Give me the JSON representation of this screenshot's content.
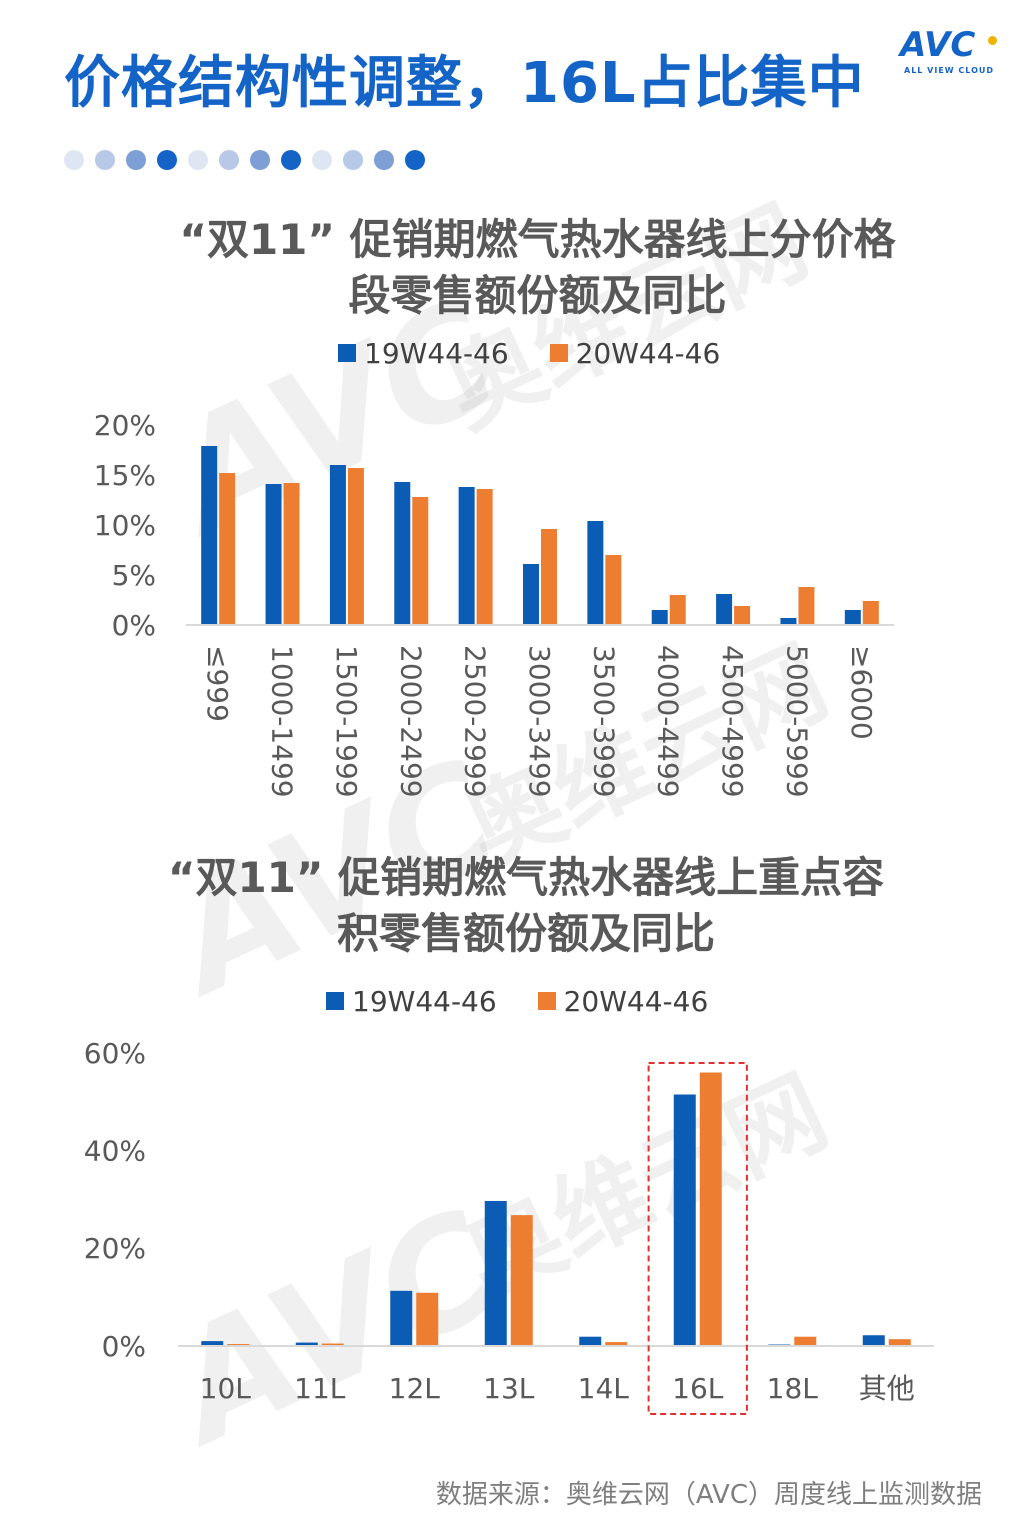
{
  "header": {
    "title": "价格结构性调整，16L占比集中",
    "logo_text": "AVC",
    "logo_subtext": "ALL VIEW CLOUD"
  },
  "decor": {
    "dot_colors": [
      "#dfe6f3",
      "#b8c9e8",
      "#7e9ed6",
      "#1464c8",
      "#dfe6f3",
      "#b8c9e8",
      "#7e9ed6",
      "#1464c8",
      "#dfe6f3",
      "#b8c9e8",
      "#7e9ed6",
      "#1464c8"
    ]
  },
  "watermark": {
    "main": "奥维云网",
    "brand": "AVC",
    "sub": "ALL VIEW CLOUD"
  },
  "colors": {
    "series1": "#0b5cb4",
    "series2": "#ed7d31",
    "highlight": "#e03030"
  },
  "charts": {
    "price": {
      "title_line1": "“双11”  促销期燃气热水器线上分价格",
      "title_line2": "段零售额份额及同比",
      "legend": [
        "19W44-46",
        "20W44-46"
      ]
    },
    "capacity": {
      "title_line1": "“双11”  促销期燃气热水器线上重点容",
      "title_line2": "积零售额份额及同比",
      "legend": [
        "19W44-46",
        "20W44-46"
      ]
    }
  },
  "chart_data": [
    {
      "type": "bar",
      "title": "“双11”  促销期燃气热水器线上分价格段零售额份额及同比",
      "categories": [
        "≤999",
        "1000-1499",
        "1500-1999",
        "2000-2499",
        "2500-2999",
        "3000-3499",
        "3500-3999",
        "4000-4499",
        "4500-4999",
        "5000-5999",
        "≥6000"
      ],
      "series": [
        {
          "name": "19W44-46",
          "values": [
            17.9,
            14.1,
            16.0,
            14.3,
            13.8,
            6.1,
            10.4,
            1.5,
            3.1,
            0.7,
            1.5
          ]
        },
        {
          "name": "20W44-46",
          "values": [
            15.2,
            14.2,
            15.7,
            12.8,
            13.6,
            9.6,
            7.0,
            3.0,
            1.9,
            3.8,
            2.4
          ]
        }
      ],
      "ylim": [
        0,
        20
      ],
      "yticks": [
        "0%",
        "5%",
        "10%",
        "15%",
        "20%"
      ],
      "x_label_rotation": 90,
      "grid": false,
      "legend_position": "top"
    },
    {
      "type": "bar",
      "title": "“双11”  促销期燃气热水器线上重点容积零售额份额及同比",
      "categories": [
        "10L",
        "11L",
        "12L",
        "13L",
        "14L",
        "16L",
        "18L",
        "其他"
      ],
      "series": [
        {
          "name": "19W44-46",
          "values": [
            1.0,
            0.7,
            11.3,
            29.7,
            1.9,
            51.5,
            0.3,
            2.2
          ]
        },
        {
          "name": "20W44-46",
          "values": [
            0.4,
            0.5,
            10.9,
            26.8,
            0.8,
            56.0,
            1.9,
            1.4
          ]
        }
      ],
      "ylim": [
        0,
        60
      ],
      "yticks": [
        "0%",
        "20%",
        "40%",
        "60%"
      ],
      "highlight_category": "16L",
      "grid": false,
      "legend_position": "top"
    }
  ],
  "footer": {
    "source": "数据来源：奥维云网（AVC）周度线上监测数据"
  }
}
